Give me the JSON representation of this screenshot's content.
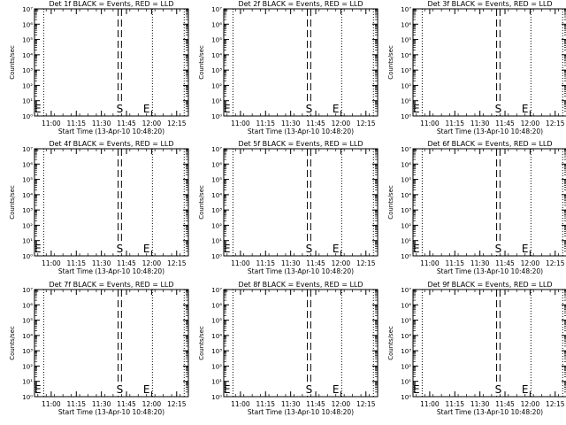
{
  "chart_data": [
    {
      "type": "line",
      "title": "Det 1f BLACK = Events, RED = LLD",
      "xlabel": "Start Time (13-Apr-10 10:48:20)",
      "ylabel": "Counts/sec"
    },
    {
      "type": "line",
      "title": "Det 2f BLACK = Events, RED = LLD",
      "xlabel": "Start Time (13-Apr-10 10:48:20)",
      "ylabel": "Counts/sec"
    },
    {
      "type": "line",
      "title": "Det 3f BLACK = Events, RED = LLD",
      "xlabel": "Start Time (13-Apr-10 10:48:20)",
      "ylabel": "Counts/sec"
    },
    {
      "type": "line",
      "title": "Det 4f BLACK = Events, RED = LLD",
      "xlabel": "Start Time (13-Apr-10 10:48:20)",
      "ylabel": "Counts/sec"
    },
    {
      "type": "line",
      "title": "Det 5f BLACK = Events, RED = LLD",
      "xlabel": "Start Time (13-Apr-10 10:48:20)",
      "ylabel": "Counts/sec"
    },
    {
      "type": "line",
      "title": "Det 6f BLACK = Events, RED = LLD",
      "xlabel": "Start Time (13-Apr-10 10:48:20)",
      "ylabel": "Counts/sec"
    },
    {
      "type": "line",
      "title": "Det 7f BLACK = Events, RED = LLD",
      "xlabel": "Start Time (13-Apr-10 10:48:20)",
      "ylabel": "Counts/sec"
    },
    {
      "type": "line",
      "title": "Det 8f BLACK = Events, RED = LLD",
      "xlabel": "Start Time (13-Apr-10 10:48:20)",
      "ylabel": "Counts/sec"
    },
    {
      "type": "line",
      "title": "Det 9f BLACK = Events, RED = LLD",
      "xlabel": "Start Time (13-Apr-10 10:48:20)",
      "ylabel": "Counts/sec"
    }
  ],
  "shared_axes": {
    "x_ticks": [
      "11:00",
      "11:15",
      "11:30",
      "11:45",
      "12:00",
      "12:15"
    ],
    "x_tick_minutes": [
      660,
      675,
      690,
      705,
      720,
      735
    ],
    "x_range_minutes": [
      650,
      742
    ],
    "y_scale": "log",
    "y_range": [
      1,
      10000000
    ],
    "y_tick_exponents": [
      0,
      1,
      2,
      3,
      4,
      5,
      6,
      7
    ],
    "y_tick_labels": [
      "10⁰",
      "10¹",
      "10²",
      "10³",
      "10⁴",
      "10⁵",
      "10⁶",
      "10⁷"
    ],
    "dotted_line_minutes": [
      655.5,
      720.5,
      739.5
    ],
    "dashed_line_minutes": [
      700,
      702
    ],
    "markers": [
      {
        "label": "E",
        "minute": 652
      },
      {
        "label": "S",
        "minute": 701
      },
      {
        "label": "E",
        "minute": 717
      }
    ]
  }
}
